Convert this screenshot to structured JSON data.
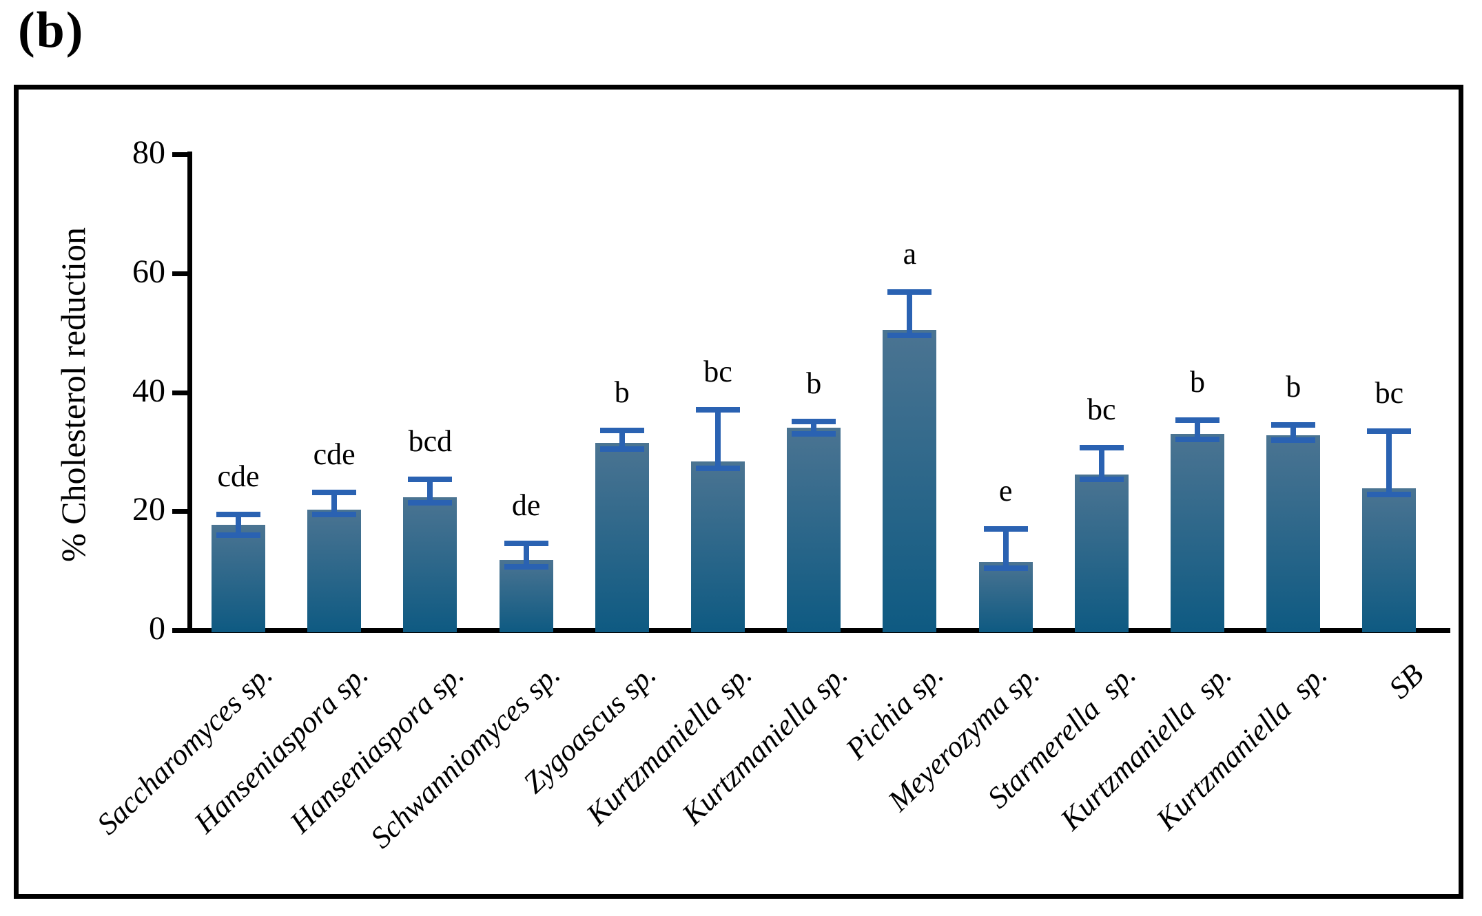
{
  "panel_label": "(b)",
  "chart_data": {
    "type": "bar",
    "title": "",
    "xlabel": "",
    "ylabel": "% Cholesterol reduction",
    "ylim": [
      0,
      80
    ],
    "yticks": [
      0,
      20,
      40,
      60,
      80
    ],
    "grid": false,
    "legend_position": "none",
    "categories": [
      "Saccharomyces sp.",
      "Hanseniaspora sp.",
      "Hanseniaspora sp.",
      "Schwanniomyces sp.",
      "Zygoascus sp.",
      "Kurtzmaniella sp.",
      "Kurtzmaniella sp.",
      "Pichia sp.",
      "Meyerozyma sp.",
      "Starmerella  sp.",
      "Kurtzmaniella  sp.",
      "Kurtzmaniella  sp.",
      "SB"
    ],
    "series": [
      {
        "name": "% Cholesterol reduction",
        "values": [
          17.7,
          20.3,
          22.4,
          11.8,
          31.5,
          28.4,
          34.0,
          50.5,
          11.5,
          26.2,
          33.0,
          32.8,
          23.9
        ],
        "error_cap_top_values": [
          19.5,
          23.2,
          25.3,
          14.6,
          33.6,
          37.1,
          35.1,
          56.8,
          17.0,
          30.7,
          35.3,
          34.5,
          33.5
        ],
        "error_cap_bottom_values": [
          16.0,
          19.4,
          21.4,
          10.7,
          30.4,
          27.2,
          33.0,
          49.6,
          10.4,
          25.3,
          32.1,
          31.9,
          22.8
        ],
        "significance_letters": [
          "cde",
          "cde",
          "bcd",
          "de",
          "b",
          "bc",
          "b",
          "a",
          "e",
          "bc",
          "b",
          "b",
          "bc"
        ]
      }
    ],
    "colors": {
      "bar_gradient_top": "#4b7492",
      "bar_gradient_bottom": "#0e5a82",
      "error_bar": "#2a62b2",
      "axis": "#000000",
      "text": "#000000",
      "background": "#ffffff"
    }
  }
}
